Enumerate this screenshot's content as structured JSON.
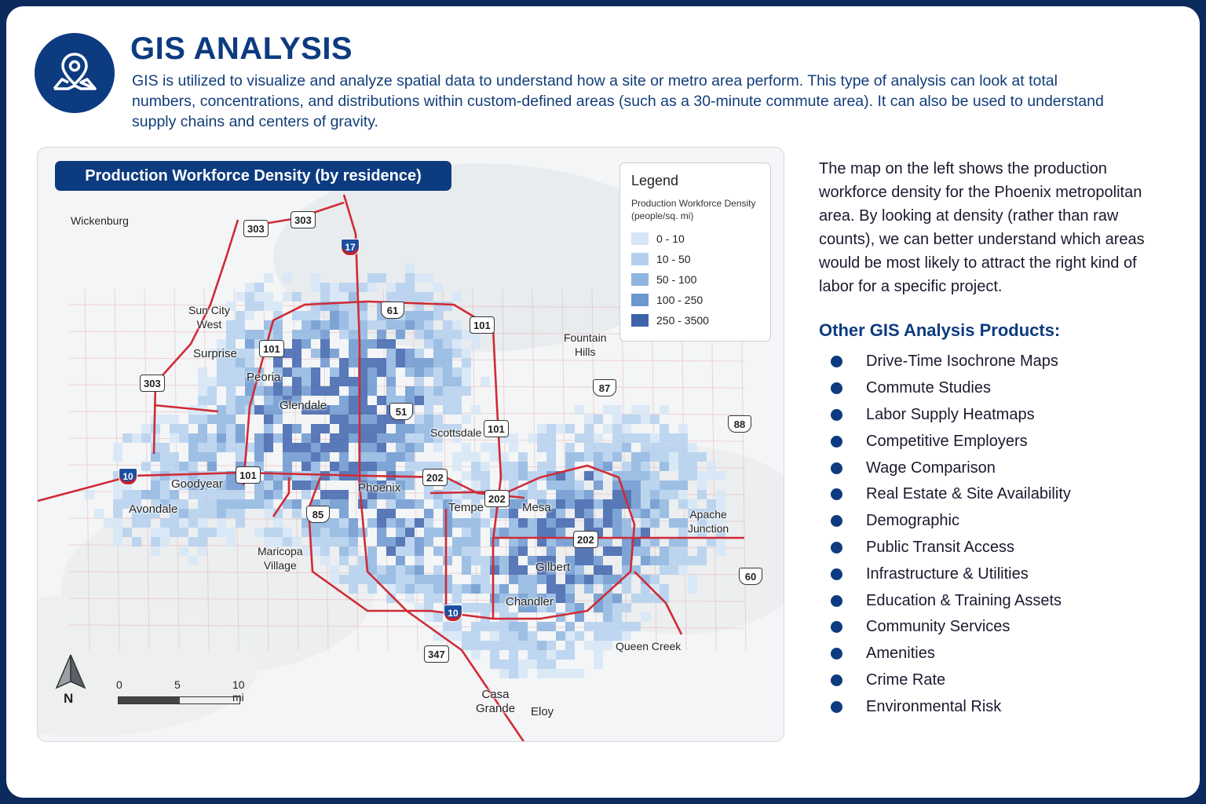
{
  "header": {
    "title": "GIS ANALYSIS",
    "intro": "GIS is utilized to visualize and analyze spatial data to understand how a site or metro area perform. This type of analysis can look at total numbers, concentrations, and distributions within custom-defined areas (such as a 30-minute commute area). It can also be used to understand supply chains and centers of gravity.",
    "icon": "map-pin-icon"
  },
  "map": {
    "title": "Production Workforce Density (by residence)",
    "legend": {
      "title": "Legend",
      "subtitle": "Production Workforce Density (people/sq. mi)",
      "classes": [
        {
          "label": "0 - 10",
          "color": "#d6e6f7"
        },
        {
          "label": "10 - 50",
          "color": "#b4d0ee"
        },
        {
          "label": "50 - 100",
          "color": "#8fb6e2"
        },
        {
          "label": "100 - 250",
          "color": "#6a97d0"
        },
        {
          "label": "250 - 3500",
          "color": "#3d63ad"
        }
      ]
    },
    "places": [
      {
        "name": "Wickenburg"
      },
      {
        "name": "Sun City West"
      },
      {
        "name": "Surprise"
      },
      {
        "name": "Peoria"
      },
      {
        "name": "Glendale"
      },
      {
        "name": "Fountain Hills"
      },
      {
        "name": "Scottsdale"
      },
      {
        "name": "Goodyear"
      },
      {
        "name": "Avondale"
      },
      {
        "name": "Phoenix"
      },
      {
        "name": "Tempe"
      },
      {
        "name": "Mesa"
      },
      {
        "name": "Apache Junction"
      },
      {
        "name": "Maricopa Village"
      },
      {
        "name": "Gilbert"
      },
      {
        "name": "Chandler"
      },
      {
        "name": "Queen Creek"
      },
      {
        "name": "Casa Grande"
      },
      {
        "name": "Eloy"
      }
    ],
    "highway_shields": [
      "303",
      "303",
      "17",
      "303",
      "101",
      "61",
      "101",
      "51",
      "101",
      "87",
      "88",
      "10",
      "101",
      "202",
      "202",
      "85",
      "202",
      "60",
      "10",
      "347"
    ],
    "north_label": "N",
    "scale": {
      "labels": [
        "0",
        "5",
        "10 mi"
      ]
    },
    "colors": {
      "highway": "#cf2b36",
      "road": "#e6a8ad"
    }
  },
  "side": {
    "description": "The map on the left shows the production workforce density for the Phoenix metropolitan area. By looking at density (rather than raw counts), we can better understand which areas would be most likely to attract the right kind of labor for a specific project.",
    "products_title": "Other GIS Analysis Products:",
    "products": [
      "Drive-Time Isochrone Maps",
      "Commute Studies",
      "Labor Supply Heatmaps",
      "Competitive Employers",
      "Wage Comparison",
      "Real Estate & Site Availability",
      "Demographic",
      "Public Transit Access",
      "Infrastructure & Utilities",
      "Education & Training Assets",
      "Community Services",
      "Amenities",
      "Crime Rate",
      "Environmental Risk"
    ]
  }
}
